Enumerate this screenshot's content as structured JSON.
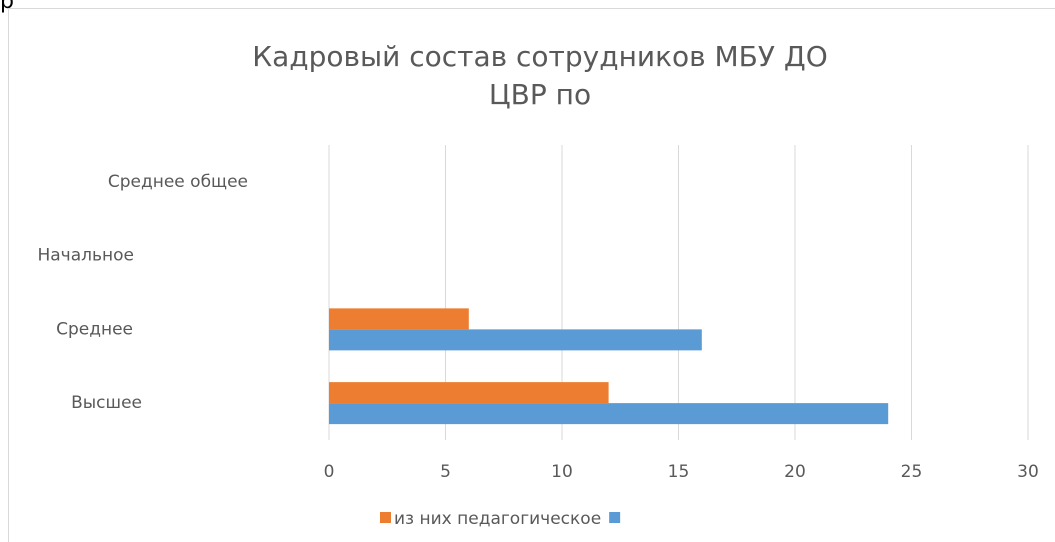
{
  "fragment": "р",
  "chart_data": {
    "type": "barh",
    "title": [
      "Кадровый состав сотрудников МБУ ДО",
      "ЦВР по"
    ],
    "categories": [
      "Высшее",
      "Среднее",
      "Начальное",
      "Среднее общее"
    ],
    "series": [
      {
        "name": "из них педагогическое",
        "color": "#ed7d31",
        "values": [
          12,
          6,
          null,
          null
        ]
      },
      {
        "color": "#5b9bd5",
        "values": [
          24,
          16,
          null,
          null
        ]
      }
    ],
    "xlim": [
      0,
      30
    ],
    "xticks": [
      0,
      5,
      10,
      15,
      20,
      25,
      30
    ],
    "grid": true,
    "legend": "bottom"
  }
}
